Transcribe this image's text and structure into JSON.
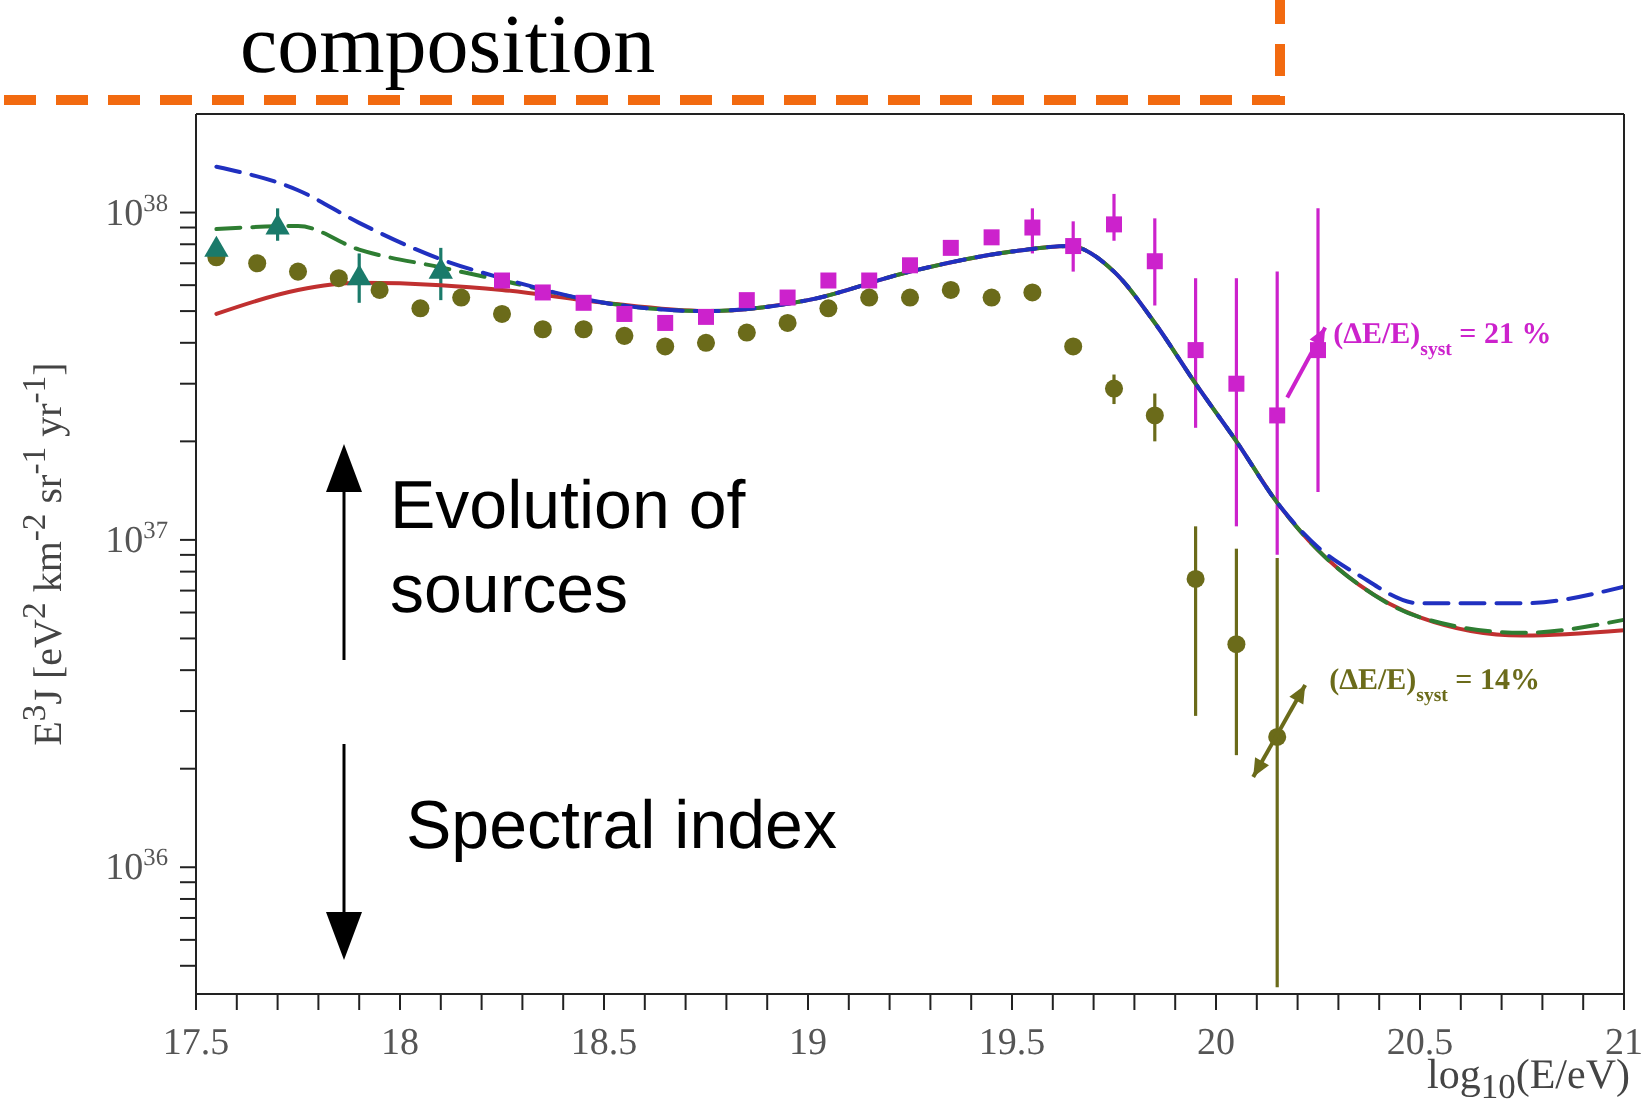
{
  "chart_data": {
    "type": "scatter",
    "title": "composition",
    "xlabel": "log$_{10}$(E/eV)",
    "ylabel": "E$^{3}$J [eV$^{2}$ km$^{-2}$ sr$^{-1}$ yr$^{-1}$]",
    "log": "y",
    "xlim": [
      17.5,
      21
    ],
    "xticks": [
      17.5,
      {
        "value": 17.6,
        "label": null
      },
      {
        "value": 17.7,
        "label": null
      },
      {
        "value": 17.8,
        "label": null
      },
      {
        "value": 17.9,
        "label": null
      },
      18,
      {
        "value": 18.1,
        "label": null
      },
      {
        "value": 18.2,
        "label": null
      },
      {
        "value": 18.3,
        "label": null
      },
      {
        "value": 18.4,
        "label": null
      },
      18.5,
      {
        "value": 18.6,
        "label": null
      },
      {
        "value": 18.7,
        "label": null
      },
      {
        "value": 18.8,
        "label": null
      },
      {
        "value": 18.9,
        "label": null
      },
      19,
      {
        "value": 19.1,
        "label": null
      },
      {
        "value": 19.2,
        "label": null
      },
      {
        "value": 19.3,
        "label": null
      },
      {
        "value": 19.4,
        "label": null
      },
      19.5,
      {
        "value": 19.6,
        "label": null
      },
      {
        "value": 19.7,
        "label": null
      },
      {
        "value": 19.8,
        "label": null
      },
      {
        "value": 19.9,
        "label": null
      },
      20,
      {
        "value": 20.1,
        "label": null
      },
      {
        "value": 20.2,
        "label": null
      },
      {
        "value": 20.3,
        "label": null
      },
      {
        "value": 20.4,
        "label": null
      },
      20.5,
      {
        "value": 20.6,
        "label": null
      },
      {
        "value": 20.7,
        "label": null
      },
      {
        "value": 20.8,
        "label": null
      },
      {
        "value": 20.9,
        "label": null
      },
      21
    ],
    "ylim": [
      4.1e+35,
      2e+38
    ],
    "yticks": [
      {
        "value": 5e+35,
        "label": null
      },
      {
        "value": 6e+35,
        "label": null
      },
      {
        "value": 7e+35,
        "label": null
      },
      {
        "value": 8e+35,
        "label": null
      },
      {
        "value": 9e+35,
        "label": null
      },
      {
        "value": 1e+36,
        "label": "10$^{36}$"
      },
      {
        "value": 2e+36,
        "label": null
      },
      {
        "value": 3e+36,
        "label": null
      },
      {
        "value": 4e+36,
        "label": null
      },
      {
        "value": 5e+36,
        "label": null
      },
      {
        "value": 6e+36,
        "label": null
      },
      {
        "value": 7e+36,
        "label": null
      },
      {
        "value": 8e+36,
        "label": null
      },
      {
        "value": 9e+36,
        "label": null
      },
      {
        "value": 1e+37,
        "label": "10$^{37}$"
      },
      {
        "value": 2e+37,
        "label": null
      },
      {
        "value": 3e+37,
        "label": null
      },
      {
        "value": 4e+37,
        "label": null
      },
      {
        "value": 5e+37,
        "label": null
      },
      {
        "value": 6e+37,
        "label": null
      },
      {
        "value": 7e+37,
        "label": null
      },
      {
        "value": 8e+37,
        "label": null
      },
      {
        "value": 9e+37,
        "label": null
      },
      {
        "value": 1e+38,
        "label": "10$^{38}$"
      }
    ],
    "series": [
      {
        "marker": "square",
        "color": "#cc22cc",
        "x": [
          18.25,
          18.35,
          18.45,
          18.55,
          18.65,
          18.75,
          18.85,
          18.95,
          19.05,
          19.15,
          19.25,
          19.35,
          19.45,
          19.55,
          19.65,
          19.75,
          19.85,
          19.95,
          20.05,
          20.15,
          20.25
        ],
        "values": [
          6.2e+37,
          5.7e+37,
          5.3e+37,
          4.9e+37,
          4.6e+37,
          4.8e+37,
          5.4e+37,
          5.5e+37,
          6.2e+37,
          6.2e+37,
          6.9e+37,
          7.8e+37,
          8.4e+37,
          9e+37,
          7.9e+37,
          9.2e+37,
          7.1e+37,
          3.8e+37,
          3e+37,
          2.4e+37,
          3.8e+37
        ],
        "errors": [
          null,
          null,
          null,
          null,
          null,
          null,
          null,
          null,
          null,
          null,
          null,
          null,
          null,
          [
            7.5e+37,
            1.03e+38
          ],
          [
            6.6e+37,
            9.4e+37
          ],
          [
            8.2e+37,
            1.14e+38
          ],
          [
            5.2e+37,
            9.6e+37
          ],
          [
            2.2e+37,
            6.3e+37
          ],
          [
            1.1e+37,
            6.3e+37
          ],
          [
            9e+36,
            6.6e+37
          ],
          [
            1.4e+37,
            1.03e+38
          ]
        ]
      },
      {
        "marker": "circle",
        "color": "#6b6b1a",
        "x": [
          17.55,
          17.65,
          17.75,
          17.85,
          17.95,
          18.05,
          18.15,
          18.25,
          18.35,
          18.45,
          18.55,
          18.65,
          18.75,
          18.85,
          18.95,
          19.05,
          19.15,
          19.25,
          19.35,
          19.45,
          19.55,
          19.65,
          19.75,
          19.85,
          19.95,
          20.05,
          20.15
        ],
        "values": [
          7.3e+37,
          7e+37,
          6.6e+37,
          6.3e+37,
          5.8e+37,
          5.1e+37,
          5.5e+37,
          4.9e+37,
          4.4e+37,
          4.4e+37,
          4.2e+37,
          3.9e+37,
          4e+37,
          4.3e+37,
          4.6e+37,
          5.1e+37,
          5.5e+37,
          5.5e+37,
          5.8e+37,
          5.5e+37,
          5.7e+37,
          3.9e+37,
          2.9e+37,
          2.4e+37,
          7.6e+36,
          4.8e+36,
          2.5e+36
        ],
        "errors": [
          null,
          null,
          null,
          null,
          null,
          null,
          null,
          null,
          null,
          null,
          null,
          null,
          null,
          null,
          null,
          null,
          null,
          null,
          null,
          null,
          null,
          null,
          [
            2.6e+37,
            3.2e+37
          ],
          [
            2e+37,
            2.8e+37
          ],
          [
            2.9e+36,
            1.1e+37
          ],
          [
            2.2e+36,
            9.4e+36
          ],
          [
            4.3e+35,
            8.8e+36
          ]
        ]
      },
      {
        "marker": "triangle",
        "color": "#1a7a6a",
        "x": [
          17.55,
          17.7,
          17.9,
          18.1
        ],
        "values": [
          7.7e+37,
          9e+37,
          6.3e+37,
          6.6e+37
        ],
        "errors": [
          [
            7e+37,
            8.2e+37
          ],
          [
            8.2e+37,
            1.03e+38
          ],
          [
            5.3e+37,
            7.5e+37
          ],
          [
            5.4e+37,
            7.8e+37
          ]
        ]
      },
      {
        "type": "line",
        "marker": "none",
        "line_style": "solid",
        "color": "#c03030",
        "x": [
          17.55,
          17.75,
          17.9,
          18.1,
          18.25,
          18.5,
          18.75,
          19,
          19.25,
          19.5,
          19.64,
          19.75,
          19.85,
          19.95,
          20.05,
          20.15,
          20.25,
          20.35,
          20.5,
          20.75,
          21
        ],
        "values": [
          4.9e+37,
          5.8e+37,
          6.1e+37,
          6e+37,
          5.8e+37,
          5.3e+37,
          5e+37,
          5.4e+37,
          6.6e+37,
          7.6e+37,
          7.9e+37,
          6.6e+37,
          4.6e+37,
          3e+37,
          2e+37,
          1.3e+37,
          9.3e+36,
          7.3e+36,
          5.8e+36,
          5.1e+36,
          5.3e+36
        ]
      },
      {
        "type": "line",
        "marker": "none",
        "line_style": "dashed",
        "color": "#2e7d32",
        "x": [
          17.55,
          17.75,
          17.9,
          18.1,
          18.25,
          18.5,
          18.75,
          19,
          19.25,
          19.5,
          19.64,
          19.75,
          19.85,
          19.95,
          20.05,
          20.15,
          20.25,
          20.35,
          20.5,
          20.75,
          21
        ],
        "values": [
          8.9e+37,
          9.1e+37,
          7.7e+37,
          6.8e+37,
          6.2e+37,
          5.3e+37,
          5e+37,
          5.4e+37,
          6.6e+37,
          7.6e+37,
          7.9e+37,
          6.6e+37,
          4.6e+37,
          3e+37,
          2e+37,
          1.3e+37,
          9.3e+36,
          7.3e+36,
          5.8e+36,
          5.2e+36,
          5.7e+36
        ]
      },
      {
        "type": "line",
        "marker": "none",
        "line_style": "dashed",
        "color": "#2030c0",
        "x": [
          17.55,
          17.75,
          17.9,
          18.1,
          18.25,
          18.5,
          18.75,
          19,
          19.25,
          19.5,
          19.64,
          19.75,
          19.85,
          19.95,
          20.05,
          20.15,
          20.25,
          20.35,
          20.5,
          20.75,
          21
        ],
        "values": [
          1.38e+38,
          1.17e+38,
          9.3e+37,
          7.2e+37,
          6.3e+37,
          5.3e+37,
          5e+37,
          5.4e+37,
          6.6e+37,
          7.6e+37,
          7.9e+37,
          6.6e+37,
          4.6e+37,
          3e+37,
          2e+37,
          1.3e+37,
          9.5e+36,
          7.8e+36,
          6.4e+36,
          6.4e+36,
          7.2e+36
        ]
      }
    ],
    "annotations": [
      "Evolution of sources",
      "Spectral index",
      {
        "text": "(ΔE/E)$_{syst}$ = 21 %",
        "x": 20.15,
        "y": 2.4e+37
      },
      {
        "text": "(ΔE/E)$_{syst}$ = 14%",
        "x": 20.15,
        "y": 2.5e+36
      }
    ]
  }
}
